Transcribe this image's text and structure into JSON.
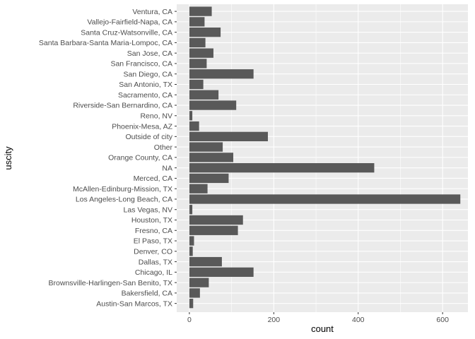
{
  "chart_data": {
    "type": "bar",
    "orientation": "horizontal",
    "xlabel": "count",
    "ylabel": "uscity",
    "xlim": [
      -30,
      660
    ],
    "xticks": [
      0,
      200,
      400,
      600
    ],
    "grid": true,
    "legend": "none",
    "colors": {
      "panel": "#ebebeb",
      "grid": "#ffffff",
      "bar": "#595959",
      "tick_text": "#4d4d4d",
      "tick_mark": "#333333"
    },
    "categories": [
      "Ventura, CA",
      "Vallejo-Fairfield-Napa, CA",
      "Santa Cruz-Watsonville, CA",
      "Santa Barbara-Santa Maria-Lompoc, CA",
      "San Jose, CA",
      "San Francisco, CA",
      "San Diego, CA",
      "San Antonio, TX",
      "Sacramento, CA",
      "Riverside-San Bernardino, CA",
      "Reno, NV",
      "Phoenix-Mesa, AZ",
      "Outside of city",
      "Other",
      "Orange County, CA",
      "NA",
      "Merced, CA",
      "McAllen-Edinburg-Mission, TX",
      "Los Angeles-Long Beach, CA",
      "Las Vegas, NV",
      "Houston, TX",
      "Fresno, CA",
      "El Paso, TX",
      "Denver, CO",
      "Dallas, TX",
      "Chicago, IL",
      "Brownsville-Harlingen-San Benito, TX",
      "Bakersfield, CA",
      "Austin-San Marcos, TX"
    ],
    "values": [
      53,
      36,
      74,
      38,
      57,
      41,
      152,
      33,
      69,
      111,
      7,
      23,
      186,
      79,
      104,
      438,
      93,
      43,
      642,
      7,
      127,
      115,
      11,
      8,
      77,
      152,
      46,
      25,
      9
    ]
  }
}
